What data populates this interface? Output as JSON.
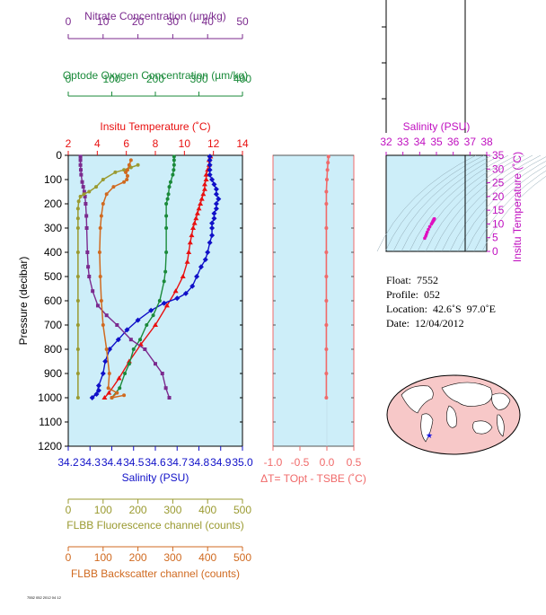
{
  "colors": {
    "nitrate": "#7b2a8e",
    "oxygen": "#1a8a3a",
    "temperature": "#e81010",
    "salinity": "#1010c8",
    "fluorescence": "#9a9a30",
    "backscatter": "#d06a20",
    "delta": "#f06a6a",
    "ts_axis": "#c010c0",
    "panel_bg": "#cdeef9"
  },
  "float_info": {
    "float": "Float:  7552",
    "profile": "Profile:  052",
    "location": "Location:  42.6˚S  97.0˚E",
    "date": "Date:  12/04/2012"
  },
  "fine_print": "7552 052 2012 04 12",
  "chart_data": [
    {
      "id": "main",
      "type": "line",
      "ylabel": "Pressure (decibar)",
      "ylim": [
        1200,
        0
      ],
      "yticks": [
        0,
        100,
        200,
        300,
        400,
        500,
        600,
        700,
        800,
        900,
        1000,
        1100,
        1200
      ],
      "axes": {
        "nitrate": {
          "label": "Nitrate Concentration (µm/kg)",
          "range": [
            0,
            50
          ],
          "ticks": [
            "0",
            "10",
            "20",
            "30",
            "40",
            "50"
          ]
        },
        "oxygen": {
          "label": "Optode Oxygen Concentration (µm/kg)",
          "range": [
            0,
            400
          ],
          "ticks": [
            "0",
            "100",
            "200",
            "300",
            "400"
          ]
        },
        "temperature": {
          "label": "Insitu Temperature (˚C)",
          "range": [
            2,
            14
          ],
          "ticks": [
            "2",
            "4",
            "6",
            "8",
            "10",
            "12",
            "14"
          ]
        },
        "salinity": {
          "label": "Salinity (PSU)",
          "range": [
            34.2,
            35.0
          ],
          "ticks": [
            "34.2",
            "34.3",
            "34.4",
            "34.5",
            "34.6",
            "34.7",
            "34.8",
            "34.9",
            "35.0"
          ]
        },
        "fluorescence": {
          "label": "FLBB Fluorescence channel (counts)",
          "range": [
            0,
            500
          ],
          "ticks": [
            "0",
            "100",
            "200",
            "300",
            "400",
            "500"
          ]
        },
        "backscatter": {
          "label": "FLBB Backscatter channel (counts)",
          "range": [
            0,
            500
          ],
          "ticks": [
            "0",
            "100",
            "200",
            "300",
            "400",
            "500"
          ]
        }
      },
      "series": [
        {
          "key": "temperature",
          "marker": "triangle",
          "points": [
            [
              11.8,
              5
            ],
            [
              11.7,
              20
            ],
            [
              11.7,
              40
            ],
            [
              11.6,
              60
            ],
            [
              11.5,
              80
            ],
            [
              11.5,
              100
            ],
            [
              11.4,
              120
            ],
            [
              11.4,
              140
            ],
            [
              11.3,
              160
            ],
            [
              11.2,
              180
            ],
            [
              11.1,
              200
            ],
            [
              11.0,
              220
            ],
            [
              10.9,
              240
            ],
            [
              10.8,
              260
            ],
            [
              10.7,
              280
            ],
            [
              10.6,
              300
            ],
            [
              10.5,
              330
            ],
            [
              10.4,
              360
            ],
            [
              10.3,
              400
            ],
            [
              10.2,
              440
            ],
            [
              9.9,
              500
            ],
            [
              9.4,
              560
            ],
            [
              8.8,
              620
            ],
            [
              8.0,
              700
            ],
            [
              7.0,
              780
            ],
            [
              6.2,
              850
            ],
            [
              5.5,
              920
            ],
            [
              4.8,
              980
            ],
            [
              4.5,
              1000
            ]
          ]
        },
        {
          "key": "salinity",
          "marker": "diamond",
          "points": [
            [
              34.85,
              5
            ],
            [
              34.85,
              20
            ],
            [
              34.85,
              40
            ],
            [
              34.85,
              60
            ],
            [
              34.85,
              80
            ],
            [
              34.86,
              100
            ],
            [
              34.87,
              120
            ],
            [
              34.88,
              140
            ],
            [
              34.88,
              160
            ],
            [
              34.89,
              180
            ],
            [
              34.88,
              200
            ],
            [
              34.88,
              220
            ],
            [
              34.87,
              240
            ],
            [
              34.87,
              260
            ],
            [
              34.86,
              280
            ],
            [
              34.86,
              300
            ],
            [
              34.86,
              330
            ],
            [
              34.85,
              360
            ],
            [
              34.84,
              400
            ],
            [
              34.83,
              430
            ],
            [
              34.81,
              460
            ],
            [
              34.79,
              500
            ],
            [
              34.77,
              540
            ],
            [
              34.74,
              570
            ],
            [
              34.7,
              590
            ],
            [
              34.64,
              610
            ],
            [
              34.58,
              640
            ],
            [
              34.52,
              680
            ],
            [
              34.47,
              720
            ],
            [
              34.43,
              760
            ],
            [
              34.39,
              800
            ],
            [
              34.37,
              850
            ],
            [
              34.36,
              900
            ],
            [
              34.34,
              950
            ],
            [
              34.33,
              985
            ],
            [
              34.31,
              1000
            ],
            [
              34.34,
              970
            ]
          ]
        },
        {
          "key": "oxygen",
          "marker": "circle",
          "points": [
            [
              243,
              5
            ],
            [
              243,
              20
            ],
            [
              243,
              40
            ],
            [
              242,
              60
            ],
            [
              240,
              80
            ],
            [
              235,
              110
            ],
            [
              232,
              130
            ],
            [
              230,
              160
            ],
            [
              228,
              180
            ],
            [
              225,
              200
            ],
            [
              225,
              250
            ],
            [
              225,
              300
            ],
            [
              225,
              400
            ],
            [
              223,
              480
            ],
            [
              220,
              520
            ],
            [
              210,
              600
            ],
            [
              195,
              660
            ],
            [
              180,
              700
            ],
            [
              165,
              760
            ],
            [
              150,
              800
            ],
            [
              140,
              860
            ],
            [
              130,
              900
            ],
            [
              118,
              960
            ],
            [
              100,
              1000
            ]
          ]
        },
        {
          "key": "nitrate",
          "marker": "square",
          "points": [
            [
              3.5,
              5
            ],
            [
              3.5,
              20
            ],
            [
              3.5,
              40
            ],
            [
              3.6,
              60
            ],
            [
              3.7,
              80
            ],
            [
              4.0,
              110
            ],
            [
              4.3,
              130
            ],
            [
              4.6,
              150
            ],
            [
              4.8,
              170
            ],
            [
              5.0,
              200
            ],
            [
              5.2,
              250
            ],
            [
              5.3,
              300
            ],
            [
              5.5,
              400
            ],
            [
              5.7,
              460
            ],
            [
              6.0,
              500
            ],
            [
              7.0,
              560
            ],
            [
              8.5,
              620
            ],
            [
              11,
              660
            ],
            [
              14,
              700
            ],
            [
              18,
              760
            ],
            [
              22,
              800
            ],
            [
              25,
              860
            ],
            [
              27,
              900
            ],
            [
              28,
              960
            ],
            [
              29,
              1000
            ]
          ]
        },
        {
          "key": "fluorescence",
          "marker": "circle",
          "points": [
            [
              200,
              40
            ],
            [
              180,
              50
            ],
            [
              160,
              60
            ],
            [
              135,
              70
            ],
            [
              100,
              100
            ],
            [
              80,
              130
            ],
            [
              60,
              150
            ],
            [
              45,
              160
            ],
            [
              35,
              170
            ],
            [
              30,
              190
            ],
            [
              28,
              220
            ],
            [
              28,
              260
            ],
            [
              28,
              300
            ],
            [
              28,
              400
            ],
            [
              28,
              500
            ],
            [
              28,
              600
            ],
            [
              28,
              700
            ],
            [
              28,
              800
            ],
            [
              28,
              900
            ],
            [
              28,
              1000
            ]
          ]
        },
        {
          "key": "backscatter",
          "marker": "circle",
          "points": [
            [
              180,
              20
            ],
            [
              175,
              40
            ],
            [
              170,
              60
            ],
            [
              165,
              70
            ],
            [
              170,
              85
            ],
            [
              168,
              100
            ],
            [
              160,
              110
            ],
            [
              130,
              130
            ],
            [
              110,
              160
            ],
            [
              100,
              200
            ],
            [
              95,
              250
            ],
            [
              92,
              300
            ],
            [
              90,
              400
            ],
            [
              92,
              500
            ],
            [
              95,
              600
            ],
            [
              100,
              700
            ],
            [
              110,
              800
            ],
            [
              118,
              900
            ],
            [
              115,
              960
            ],
            [
              140,
              980
            ],
            [
              125,
              1000
            ],
            [
              160,
              990
            ]
          ]
        }
      ]
    },
    {
      "id": "delta",
      "type": "line",
      "xlabel": "ΔT= TOpt - TSBE (˚C)",
      "xlim": [
        -1.0,
        0.5
      ],
      "xticks": [
        "-1.0",
        "-0.5",
        "0.0",
        "0.5"
      ],
      "ylim": [
        1200,
        0
      ],
      "series": [
        {
          "key": "delta",
          "marker": "circle",
          "points": [
            [
              0.03,
              5
            ],
            [
              0.02,
              30
            ],
            [
              0.01,
              60
            ],
            [
              0.0,
              100
            ],
            [
              -0.01,
              150
            ],
            [
              -0.01,
              200
            ],
            [
              -0.01,
              300
            ],
            [
              -0.01,
              400
            ],
            [
              -0.01,
              500
            ],
            [
              -0.01,
              600
            ],
            [
              -0.01,
              700
            ],
            [
              -0.01,
              800
            ],
            [
              -0.01,
              900
            ],
            [
              -0.01,
              1000
            ]
          ]
        }
      ]
    },
    {
      "id": "ts",
      "type": "scatter",
      "xlabel": "Salinity (PSU)",
      "ylabel": "Insitu Temperature (˚C)",
      "xlim": [
        32,
        38
      ],
      "xticks": [
        "32",
        "33",
        "34",
        "35",
        "36",
        "37",
        "38"
      ],
      "ylim": [
        0,
        35
      ],
      "yticks": [
        "0",
        "5",
        "10",
        "15",
        "20",
        "25",
        "30",
        "35"
      ],
      "series": [
        {
          "key": "ts_points",
          "points": [
            [
              34.3,
              4.8
            ],
            [
              34.36,
              5.5
            ],
            [
              34.4,
              6.2
            ],
            [
              34.45,
              7.0
            ],
            [
              34.52,
              8.0
            ],
            [
              34.6,
              9.0
            ],
            [
              34.7,
              10.0
            ],
            [
              34.78,
              10.8
            ],
            [
              34.82,
              11.2
            ],
            [
              34.86,
              11.6
            ],
            [
              34.88,
              11.9
            ],
            [
              34.85,
              11.8
            ],
            [
              34.8,
              11.2
            ],
            [
              34.75,
              10.5
            ]
          ]
        }
      ]
    }
  ]
}
